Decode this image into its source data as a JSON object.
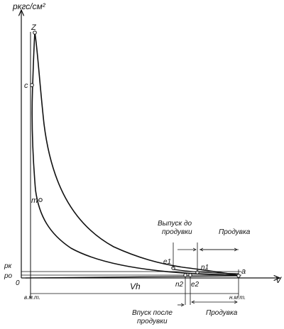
{
  "axes": {
    "y_label": "pкгс/см²",
    "x_label": "V",
    "origin_label": "0",
    "pk_label": "pк",
    "po_label": "po",
    "vh_label": "Vh"
  },
  "points": {
    "z": "Z",
    "c": "c",
    "m": "m",
    "e1": "e1",
    "n1": "n1",
    "n2": "n2",
    "e2": "e2",
    "a": "a"
  },
  "annotations": {
    "exhaust_before_scavenge_line1": "Выпуск до",
    "exhaust_before_scavenge_line2": "продувки",
    "scavenge_top": "Продувка",
    "intake_after_scavenge_line1": "Впуск после",
    "intake_after_scavenge_line2": "продувки",
    "scavenge_bottom": "Продувка",
    "tdc": "в.м.т.",
    "bdc": "н.м.т."
  }
}
